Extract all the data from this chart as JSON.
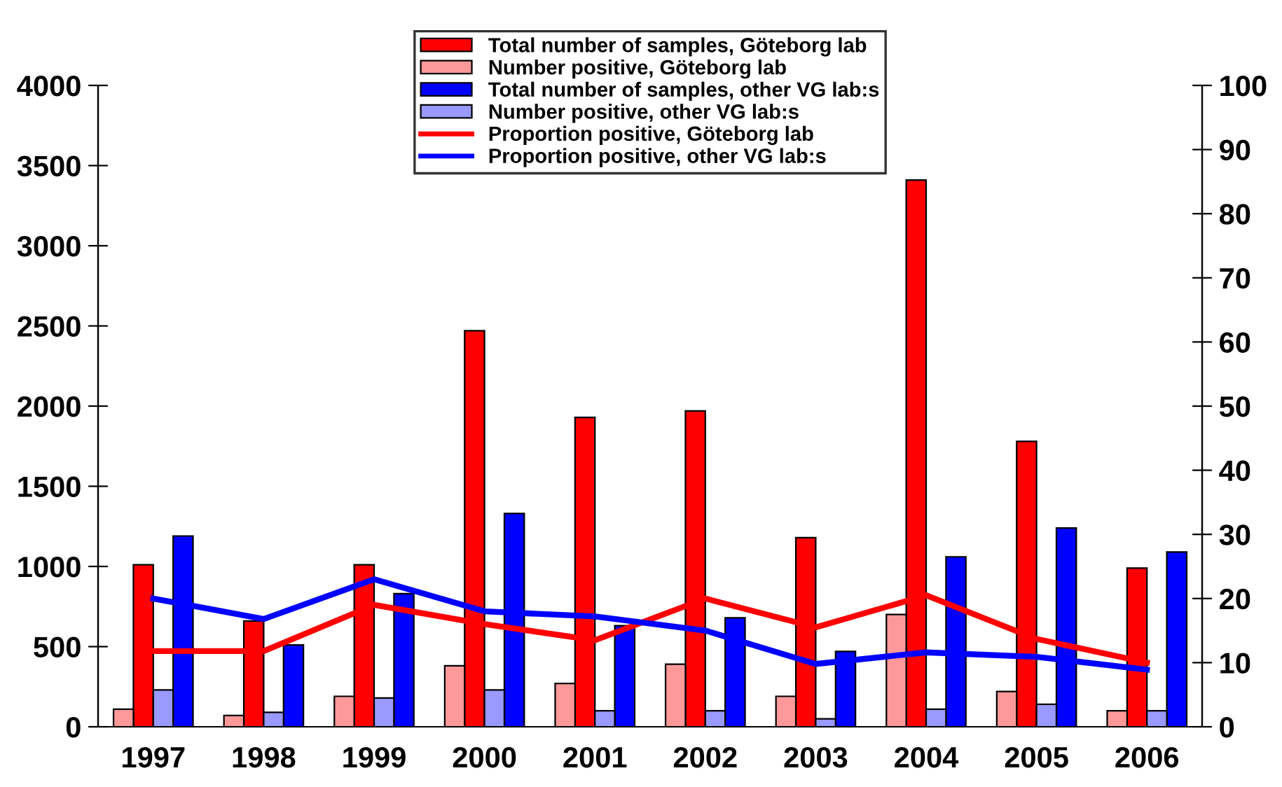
{
  "chart_data": {
    "type": "bar",
    "categories": [
      "1997",
      "1998",
      "1999",
      "2000",
      "2001",
      "2002",
      "2003",
      "2004",
      "2005",
      "2006"
    ],
    "series": [
      {
        "name": "Total number of samples, Göteborg lab",
        "color": "#ff0000",
        "values": [
          1010,
          660,
          1010,
          2470,
          1930,
          1970,
          1180,
          3410,
          1780,
          990
        ]
      },
      {
        "name": "Number positive, Göteborg lab",
        "color": "#ff9999",
        "values": [
          110,
          70,
          190,
          380,
          270,
          390,
          190,
          700,
          220,
          100
        ]
      },
      {
        "name": "Total number of samples, other VG lab:s",
        "color": "#0000ff",
        "values": [
          1190,
          510,
          830,
          1330,
          630,
          680,
          470,
          1060,
          1240,
          1090
        ]
      },
      {
        "name": "Number positive, other VG lab:s",
        "color": "#9999ff",
        "values": [
          230,
          90,
          180,
          230,
          100,
          100,
          50,
          110,
          140,
          100
        ]
      },
      {
        "name": "Proportion positive, Göteborg lab",
        "color": "#ff0000",
        "type": "line",
        "axis": "y2",
        "values": [
          11.8,
          11.8,
          19,
          16,
          13.5,
          20,
          15.5,
          20.5,
          13.7,
          10
        ]
      },
      {
        "name": "Proportion positive, other VG lab:s",
        "color": "#0000ff",
        "type": "line",
        "axis": "y2",
        "values": [
          20,
          16.8,
          23,
          18,
          17.2,
          15,
          9.8,
          11.6,
          10.9,
          8.9
        ]
      }
    ],
    "ylim": [
      0,
      4000
    ],
    "yticks": [
      0,
      500,
      1000,
      1500,
      2000,
      2500,
      3000,
      3500,
      4000
    ],
    "y2lim": [
      0,
      100
    ],
    "y2ticks": [
      0,
      10,
      20,
      30,
      40,
      50,
      60,
      70,
      80,
      90,
      100
    ],
    "legend": "top",
    "grid": false
  }
}
